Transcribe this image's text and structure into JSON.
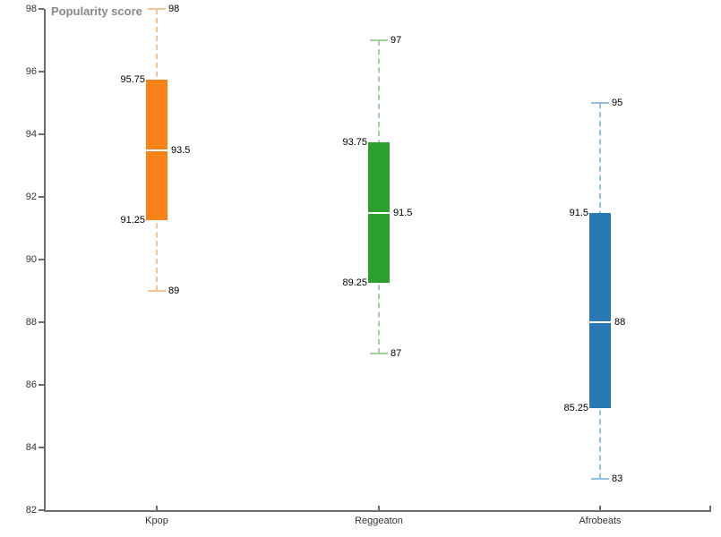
{
  "chart_data": {
    "type": "boxplot",
    "y_title": "Popularity score",
    "categories": [
      "Kpop",
      "Reggeaton",
      "Afrobeats"
    ],
    "yaxis": {
      "min": 82,
      "max": 98,
      "tick_interval": 2,
      "tick_labels": [
        "98",
        "96",
        "94",
        "92",
        "90",
        "88",
        "86",
        "84",
        "82"
      ]
    },
    "grid": false,
    "legend": "none",
    "median_line_color": "#ffffff",
    "series": [
      {
        "name": "Kpop",
        "low": 89,
        "q1": 91.25,
        "median": 93.5,
        "q3": 95.75,
        "high": 98,
        "box_color": "#f8821a",
        "whisker_color": "#f6c492",
        "labels": {
          "low": "89",
          "q1": "91.25",
          "median": "93.5",
          "q3": "95.75",
          "high": "98"
        }
      },
      {
        "name": "Reggeaton",
        "low": 87,
        "q1": 89.25,
        "median": 91.5,
        "q3": 93.75,
        "high": 97,
        "box_color": "#2ca02c",
        "whisker_color": "#a0d39c",
        "labels": {
          "low": "87",
          "q1": "89.25",
          "median": "91.5",
          "q3": "93.75",
          "high": "97"
        }
      },
      {
        "name": "Afrobeats",
        "low": 83,
        "q1": 85.25,
        "median": 88,
        "q3": 91.5,
        "high": 95,
        "box_color": "#2878b4",
        "whisker_color": "#92c1dd",
        "labels": {
          "low": "83",
          "q1": "85.25",
          "median": "88",
          "q3": "91.5",
          "high": "95"
        }
      }
    ]
  },
  "axis_style": {
    "line_color": "#6d6d6d",
    "tick_label_color": "#333333",
    "title_color": "#888888",
    "data_label_color": "#000000"
  }
}
